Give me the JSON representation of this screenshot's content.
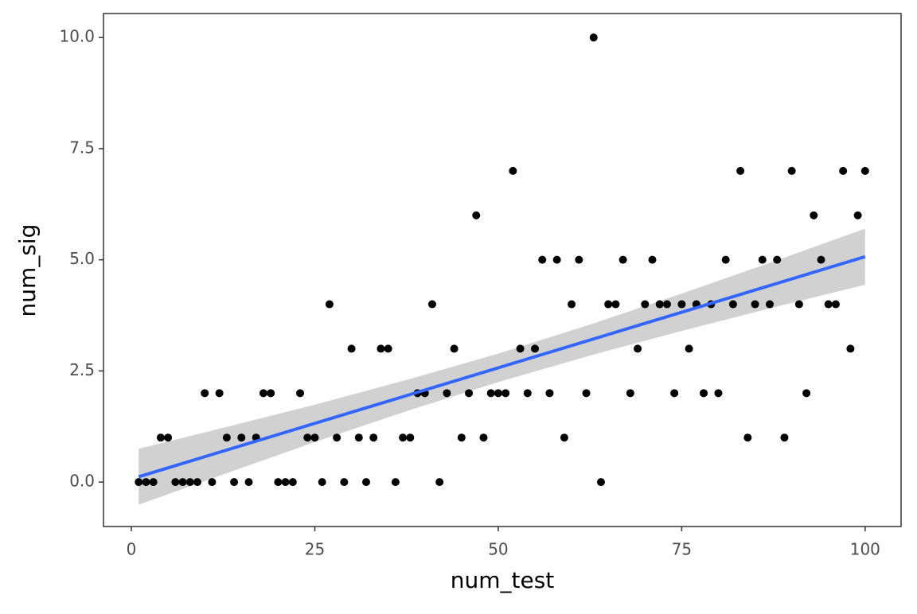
{
  "chart_data": {
    "type": "scatter",
    "x": [
      1,
      2,
      3,
      4,
      5,
      6,
      7,
      8,
      9,
      10,
      11,
      12,
      13,
      14,
      15,
      16,
      17,
      18,
      19,
      20,
      21,
      22,
      23,
      24,
      25,
      26,
      27,
      28,
      29,
      30,
      31,
      32,
      33,
      34,
      35,
      36,
      37,
      38,
      39,
      40,
      41,
      42,
      43,
      44,
      45,
      46,
      47,
      48,
      49,
      50,
      51,
      52,
      53,
      54,
      55,
      56,
      57,
      58,
      59,
      60,
      61,
      62,
      63,
      64,
      65,
      66,
      67,
      68,
      69,
      70,
      71,
      72,
      73,
      74,
      75,
      76,
      77,
      78,
      79,
      80,
      81,
      82,
      83,
      84,
      85,
      86,
      87,
      88,
      89,
      90,
      91,
      92,
      93,
      94,
      95,
      96,
      97,
      98,
      99,
      100
    ],
    "values": [
      0,
      0,
      0,
      1,
      1,
      0,
      0,
      0,
      0,
      2,
      0,
      2,
      1,
      0,
      1,
      0,
      1,
      2,
      2,
      0,
      0,
      0,
      2,
      1,
      1,
      0,
      4,
      1,
      0,
      3,
      1,
      0,
      1,
      3,
      3,
      0,
      1,
      1,
      2,
      2,
      4,
      0,
      2,
      3,
      1,
      2,
      6,
      1,
      2,
      2,
      2,
      7,
      3,
      2,
      3,
      5,
      2,
      5,
      1,
      4,
      5,
      2,
      10,
      0,
      4,
      4,
      5,
      2,
      3,
      4,
      5,
      4,
      4,
      2,
      4,
      3,
      4,
      2,
      4,
      2,
      5,
      4,
      7,
      1,
      4,
      5,
      4,
      5,
      1,
      7,
      4,
      2,
      6,
      5,
      4,
      4,
      7,
      3,
      6,
      7
    ],
    "color": "#000000",
    "fit": {
      "x": [
        1,
        100
      ],
      "values": [
        0.12,
        5.07
      ],
      "color": "#3366ff"
    },
    "band": {
      "x": [
        1,
        13,
        25,
        38,
        50,
        63,
        75,
        88,
        100
      ],
      "lower": [
        -0.51,
        0.2,
        0.9,
        1.62,
        2.25,
        2.87,
        3.4,
        3.95,
        4.44
      ],
      "upper": [
        0.75,
        1.24,
        1.74,
        2.32,
        2.89,
        3.57,
        4.24,
        4.99,
        5.7
      ],
      "color": "#cccccc"
    },
    "xlabel": "num_test",
    "ylabel": "num_sig",
    "xlim": [
      -3.8,
      104.9
    ],
    "ylim": [
      -1.0,
      10.54
    ],
    "xticks": [
      0,
      25,
      50,
      75,
      100
    ],
    "yticks": [
      {
        "value": 0,
        "label": "0.0"
      },
      {
        "value": 2.5,
        "label": "2.5"
      },
      {
        "value": 5,
        "label": "5.0"
      },
      {
        "value": 7.5,
        "label": "7.5"
      },
      {
        "value": 10,
        "label": "10.0"
      }
    ]
  }
}
